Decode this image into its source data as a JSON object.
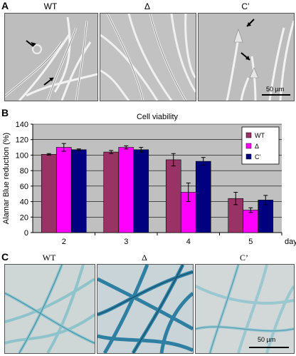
{
  "figure": {
    "panel_a": {
      "letter": "A",
      "images": [
        {
          "label": "WT"
        },
        {
          "label": "Δ"
        },
        {
          "label": "C’"
        }
      ],
      "scalebar_label": "50 µm"
    },
    "panel_b": {
      "letter": "B"
    },
    "panel_c": {
      "letter": "C",
      "images": [
        {
          "label": "WT"
        },
        {
          "label": "Δ"
        },
        {
          "label": "C’"
        }
      ],
      "scalebar_label": "50 µm"
    }
  },
  "chart_data": {
    "type": "bar",
    "title": "Cell viability",
    "xlabel": "days",
    "ylabel": "Alamar Blue reduction (%)",
    "categories": [
      "2",
      "3",
      "4",
      "5"
    ],
    "ylim": [
      0,
      140
    ],
    "yticks": [
      0,
      20,
      40,
      60,
      80,
      100,
      120,
      140
    ],
    "grid": true,
    "legend_position": "top-right",
    "series": [
      {
        "name": "WT",
        "color": "#993366",
        "values": [
          101,
          104,
          94,
          44
        ],
        "errors": [
          1,
          2,
          8,
          8
        ]
      },
      {
        "name": "Δ",
        "color": "#ff00ff",
        "values": [
          110,
          110,
          52,
          29
        ],
        "errors": [
          5,
          2,
          12,
          3
        ]
      },
      {
        "name": "C’",
        "color": "#000080",
        "values": [
          107,
          107,
          92,
          42
        ],
        "errors": [
          1,
          3,
          5,
          6
        ]
      }
    ]
  }
}
